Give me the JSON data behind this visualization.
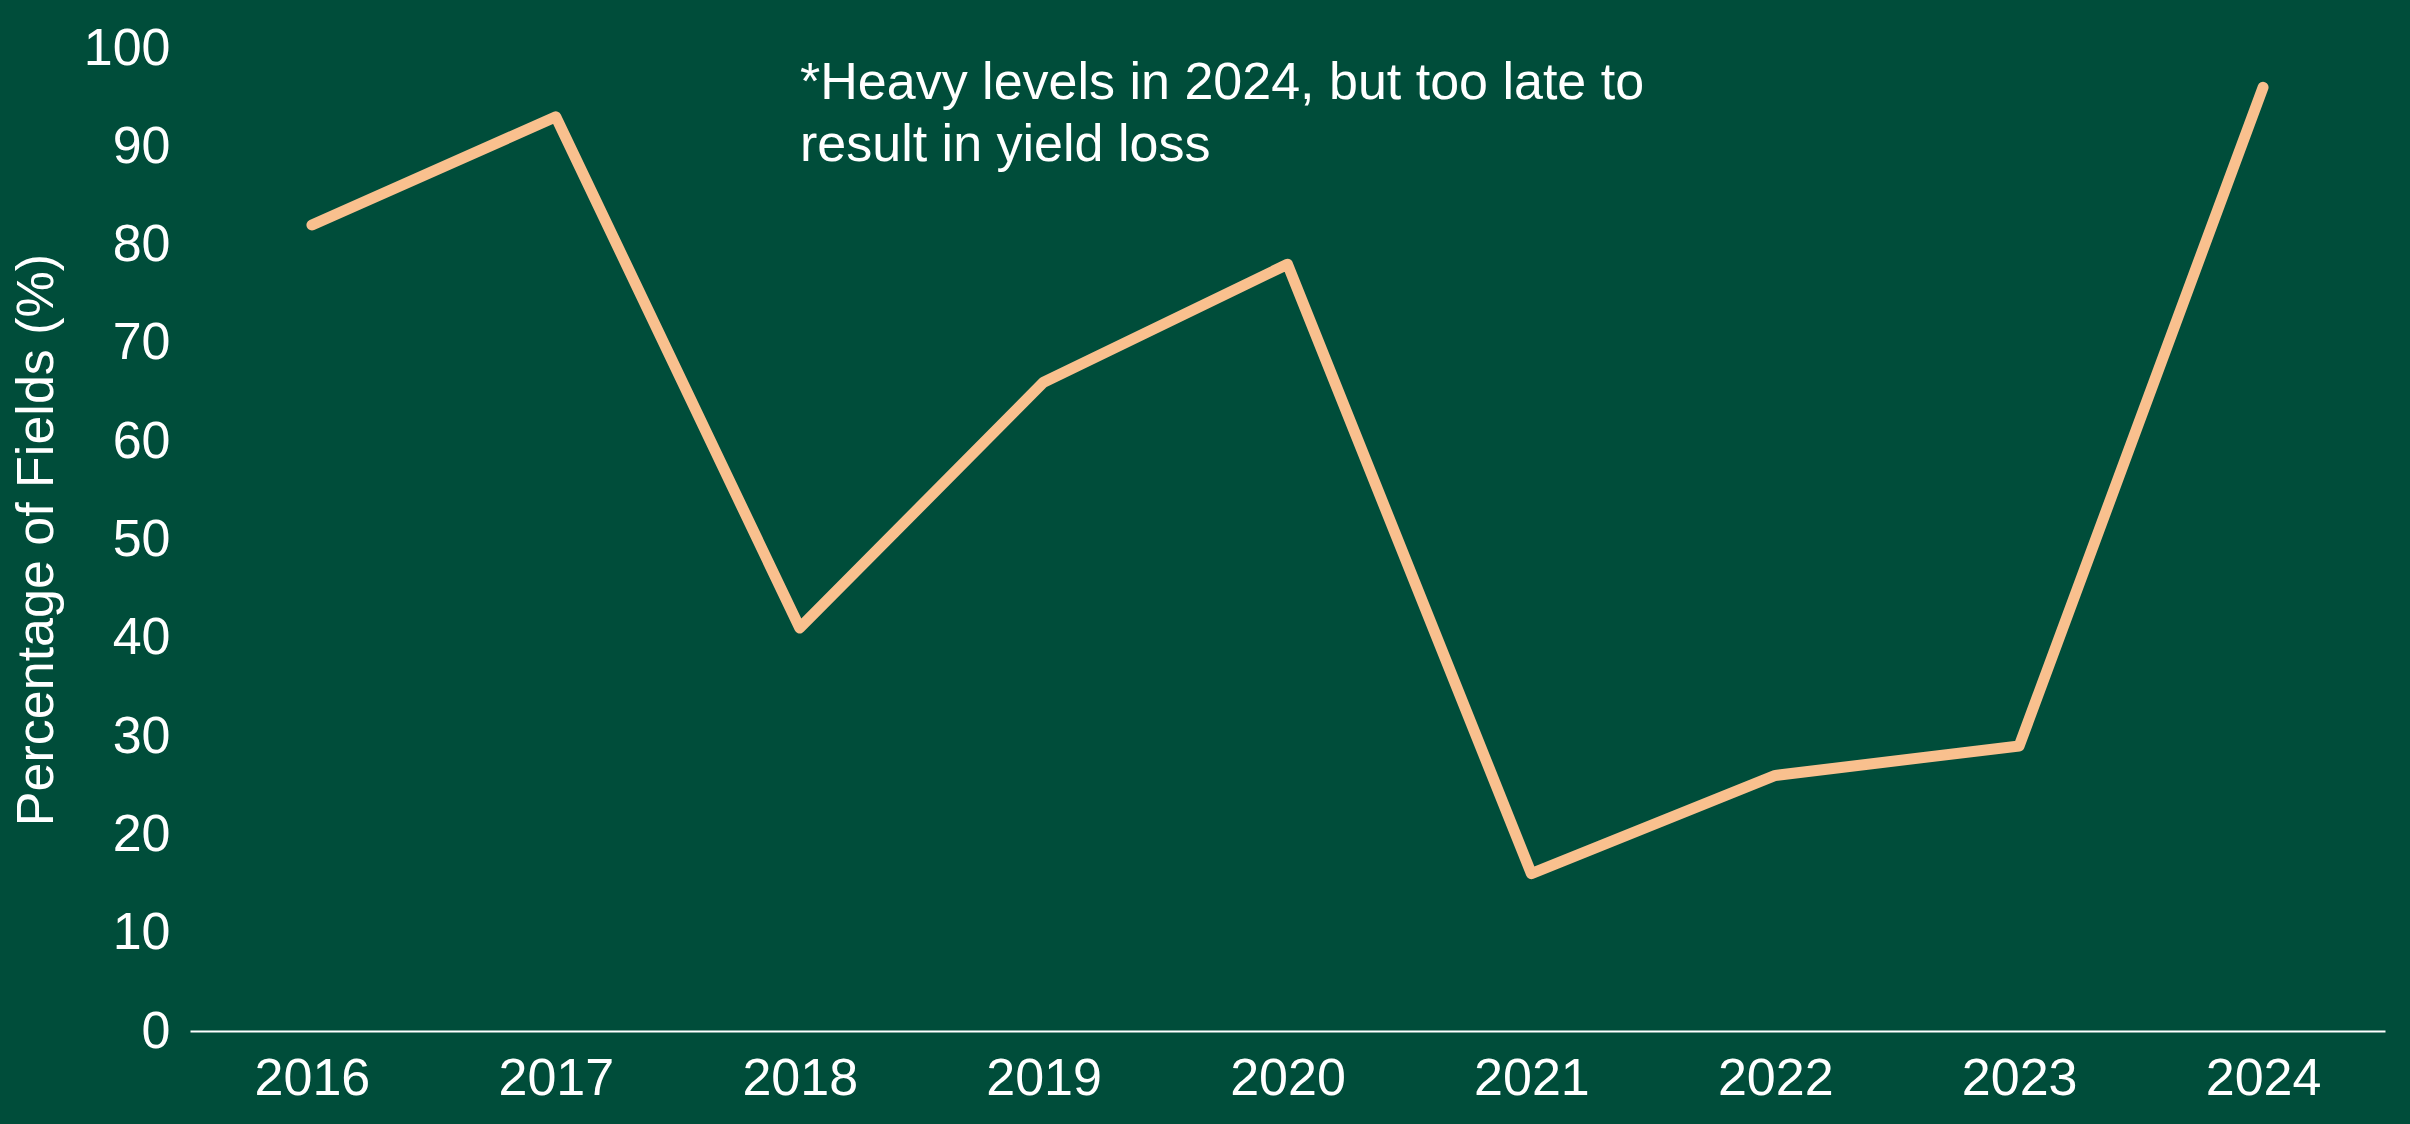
{
  "chart_data": {
    "type": "line",
    "ylabel": "Percentage of Fields (%)",
    "categories": [
      "2016",
      "2017",
      "2018",
      "2019",
      "2020",
      "2021",
      "2022",
      "2023",
      "2024"
    ],
    "series": [
      {
        "color": "#f9c08e",
        "values": [
          82,
          93,
          41,
          66,
          78,
          16,
          26,
          29,
          96
        ]
      }
    ],
    "ylim": [
      0,
      100
    ],
    "yticks": [
      0,
      10,
      20,
      30,
      40,
      50,
      60,
      70,
      80,
      90,
      100
    ],
    "grid": false,
    "marker": "none",
    "line_style": "solid",
    "annotations": [
      "*Heavy levels in 2024, but too late to result in yield loss"
    ]
  }
}
